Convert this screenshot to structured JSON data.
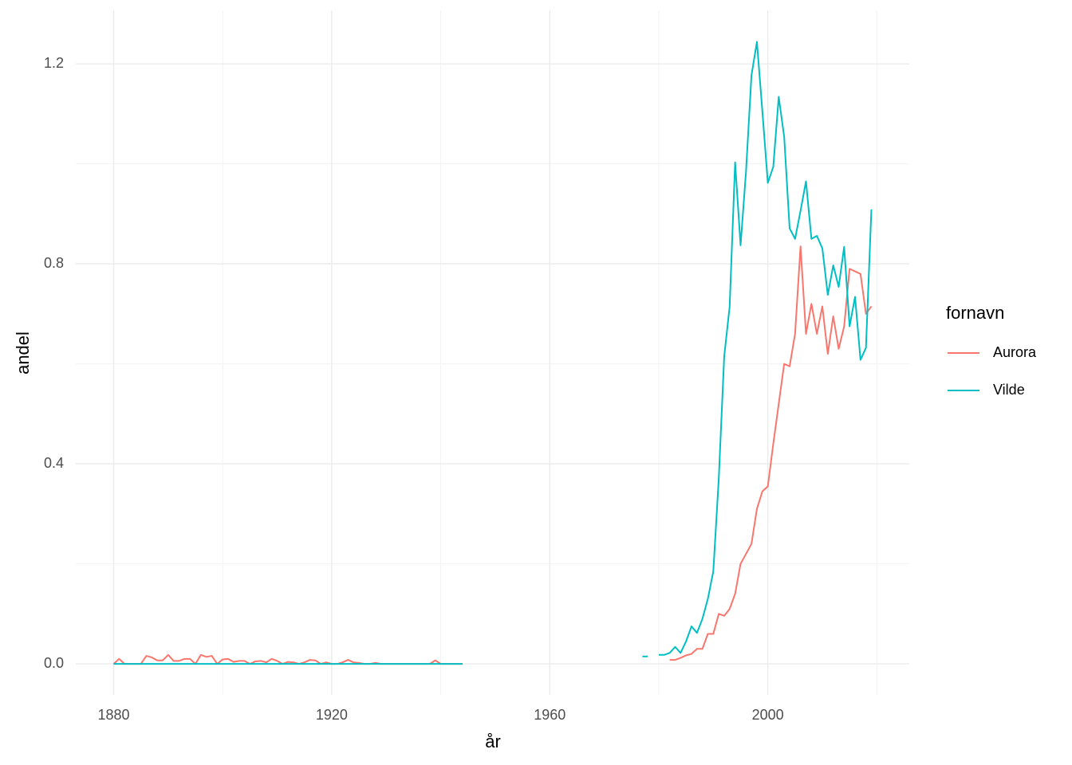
{
  "chart_data": {
    "type": "line",
    "x_label": "år",
    "y_label": "andel",
    "legend_title": "fornavn",
    "legend_position": "right",
    "xlim": [
      1873.05,
      2025.95
    ],
    "xticks": [
      1880,
      1920,
      1960,
      2000
    ],
    "minor_xticks": [
      1900,
      1940,
      1980,
      2020
    ],
    "ylim": [
      -0.062,
      1.307
    ],
    "yticks": [
      {
        "value": 0,
        "label": "0.0"
      },
      {
        "value": 0.4,
        "label": "0.4"
      },
      {
        "value": 0.8,
        "label": "0.8"
      },
      {
        "value": 1.2,
        "label": "1.2"
      }
    ],
    "minor_yticks": [
      0.2,
      0.6,
      1.0
    ],
    "grid": true,
    "x": [
      1880,
      1881,
      1882,
      1883,
      1884,
      1885,
      1886,
      1887,
      1888,
      1889,
      1890,
      1891,
      1892,
      1893,
      1894,
      1895,
      1896,
      1897,
      1898,
      1899,
      1900,
      1901,
      1902,
      1903,
      1904,
      1905,
      1906,
      1907,
      1908,
      1909,
      1910,
      1911,
      1912,
      1913,
      1914,
      1915,
      1916,
      1917,
      1918,
      1919,
      1920,
      1921,
      1922,
      1923,
      1924,
      1925,
      1926,
      1927,
      1928,
      1929,
      1930,
      1931,
      1932,
      1933,
      1934,
      1935,
      1936,
      1937,
      1938,
      1939,
      1940,
      1941,
      1942,
      1943,
      1944,
      1945,
      1977,
      1978,
      1979,
      1980,
      1981,
      1982,
      1983,
      1984,
      1985,
      1986,
      1987,
      1988,
      1989,
      1990,
      1991,
      1992,
      1993,
      1994,
      1995,
      1996,
      1997,
      1998,
      1999,
      2000,
      2001,
      2002,
      2003,
      2004,
      2005,
      2006,
      2007,
      2008,
      2009,
      2010,
      2011,
      2012,
      2013,
      2014,
      2015,
      2016,
      2017,
      2018,
      2019
    ],
    "series": [
      {
        "name": "Aurora",
        "color": "#F8766D",
        "values": [
          0,
          0.01,
          0,
          0,
          0,
          0,
          0.016,
          0.013,
          0.007,
          0.007,
          0.018,
          0.006,
          0.006,
          0.01,
          0.01,
          0,
          0.018,
          0.014,
          0.016,
          0,
          0.009,
          0.01,
          0.004,
          0.006,
          0.006,
          0,
          0.005,
          0.006,
          0.003,
          0.01,
          0.006,
          0,
          0.004,
          0.003,
          0,
          0.003,
          0.008,
          0.007,
          0,
          0.003,
          0,
          0,
          0.003,
          0.008,
          0.003,
          0.002,
          0,
          0,
          0.002,
          0,
          0,
          0,
          0,
          0,
          0,
          0,
          0,
          0,
          0,
          0.007,
          0,
          0,
          0,
          0,
          0,
          null,
          null,
          null,
          null,
          null,
          null,
          0.008,
          0.008,
          0.012,
          0.017,
          0.02,
          0.03,
          0.03,
          0.06,
          0.06,
          0.1,
          0.096,
          0.11,
          0.14,
          0.2,
          0.22,
          0.24,
          0.31,
          0.345,
          0.355,
          0.44,
          0.52,
          0.6,
          0.595,
          0.66,
          0.835,
          0.66,
          0.72,
          0.66,
          0.715,
          0.62,
          0.695,
          0.63,
          0.675,
          0.79,
          0.785,
          0.78,
          0.7,
          0.715
        ]
      },
      {
        "name": "Vilde",
        "color": "#00BFC4",
        "values": [
          0,
          0,
          0,
          0,
          0,
          0,
          0,
          0,
          0,
          0,
          0,
          0,
          0,
          0,
          0,
          0,
          0,
          0,
          0,
          0,
          0,
          0,
          0,
          0,
          0,
          0,
          0,
          0,
          0,
          0,
          0,
          0,
          0,
          0,
          0,
          0,
          0,
          0,
          0,
          0,
          0,
          0,
          0,
          0,
          0,
          0,
          0,
          0,
          0,
          0,
          0,
          0,
          0,
          0,
          0,
          0,
          0,
          0,
          0,
          0,
          0,
          0,
          0,
          0,
          0,
          null,
          0.015,
          0.015,
          null,
          0.018,
          0.018,
          0.022,
          0.034,
          0.022,
          0.045,
          0.075,
          0.062,
          0.09,
          0.13,
          0.185,
          0.37,
          0.615,
          0.715,
          1.003,
          0.837,
          0.985,
          1.177,
          1.244,
          1.105,
          0.962,
          0.994,
          1.134,
          1.054,
          0.871,
          0.85,
          0.906,
          0.965,
          0.85,
          0.856,
          0.831,
          0.738,
          0.797,
          0.754,
          0.834,
          0.675,
          0.734,
          0.608,
          0.632,
          0.909
        ]
      }
    ]
  }
}
